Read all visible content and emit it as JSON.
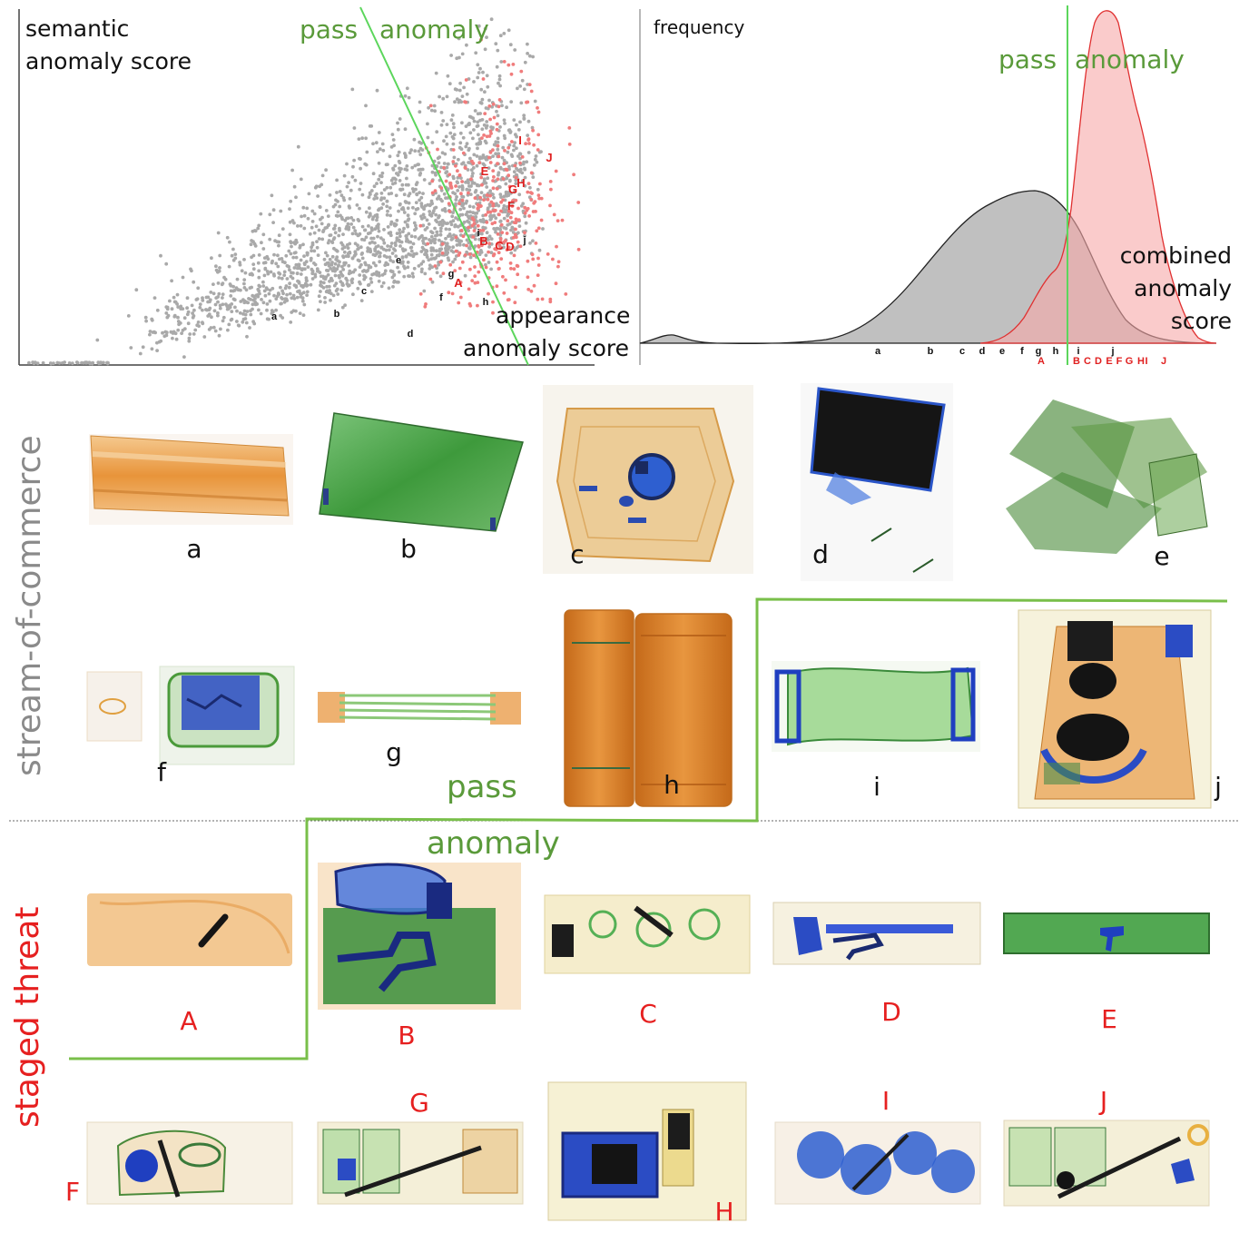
{
  "scatter": {
    "y_label_line1": "semantic",
    "y_label_line2": "anomaly score",
    "x_label_line1": "appearance",
    "x_label_line2": "anomaly score",
    "pass_label": "pass",
    "anomaly_label": "anomaly"
  },
  "density": {
    "y_label": "frequency",
    "pass_label": "pass",
    "anomaly_label": "anomaly",
    "score_label_line1": "combined",
    "score_label_line2": "anomaly",
    "score_label_line3": "score"
  },
  "chart_data": [
    {
      "type": "scatter",
      "series": [
        {
          "name": "stream-of-commerce"
        },
        {
          "name": "staged threat"
        }
      ],
      "labeled_points": [
        {
          "label": "a",
          "group": "commerce"
        },
        {
          "label": "b",
          "group": "commerce"
        },
        {
          "label": "c",
          "group": "commerce"
        },
        {
          "label": "d",
          "group": "commerce"
        },
        {
          "label": "e",
          "group": "commerce"
        },
        {
          "label": "f",
          "group": "commerce"
        },
        {
          "label": "g",
          "group": "commerce"
        },
        {
          "label": "h",
          "group": "commerce"
        },
        {
          "label": "i",
          "group": "commerce"
        },
        {
          "label": "j",
          "group": "commerce"
        },
        {
          "label": "A",
          "group": "threat"
        },
        {
          "label": "B",
          "group": "threat"
        },
        {
          "label": "C",
          "group": "threat"
        },
        {
          "label": "D",
          "group": "threat"
        },
        {
          "label": "E",
          "group": "threat"
        },
        {
          "label": "F",
          "group": "threat"
        },
        {
          "label": "G",
          "group": "threat"
        },
        {
          "label": "H",
          "group": "threat"
        },
        {
          "label": "I",
          "group": "threat"
        },
        {
          "label": "J",
          "group": "threat"
        }
      ],
      "grid": false
    },
    {
      "type": "area",
      "series": [
        {
          "name": "stream-of-commerce",
          "color": "#bdbdbd"
        },
        {
          "name": "staged threat",
          "color": "#f7b3b3"
        }
      ],
      "commerce_ticks": [
        "a",
        "b",
        "c",
        "d",
        "e",
        "f",
        "g",
        "h",
        "i",
        "j"
      ],
      "threat_ticks": [
        "A",
        "B",
        "C",
        "D",
        "E",
        "F",
        "G",
        "H",
        "I",
        "J"
      ],
      "grid": false
    }
  ],
  "rows": {
    "commerce_title": "stream-of-commerce",
    "threat_title": "staged threat",
    "pass_label": "pass",
    "anomaly_label": "anomaly",
    "commerce_items": [
      "a",
      "b",
      "c",
      "d",
      "e",
      "f",
      "g",
      "h",
      "i",
      "j"
    ],
    "threat_items": [
      "A",
      "B",
      "C",
      "D",
      "E",
      "F",
      "G",
      "H",
      "I",
      "J"
    ]
  },
  "colors": {
    "commerce_point": "#a9a9a9",
    "threat_point": "#f07c7c",
    "threshold_line": "#5cd65c",
    "region_text": "#5a9a3a",
    "threat_text": "#e62020",
    "side_title_gray": "#8a8a8a"
  }
}
